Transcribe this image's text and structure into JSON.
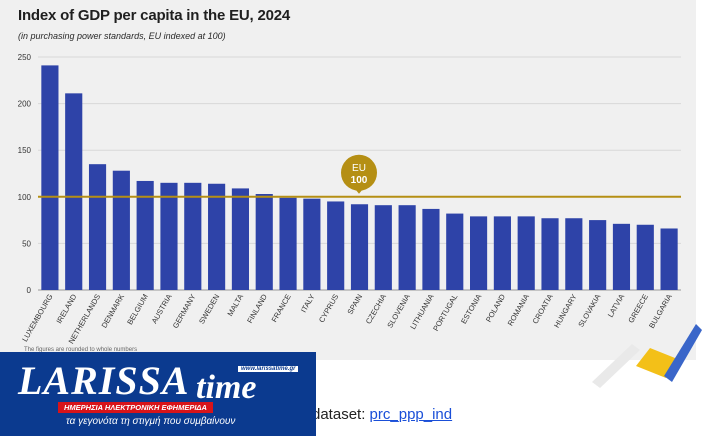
{
  "colors": {
    "bar": "#2e43a8",
    "reference": "#b58f14",
    "grid": "#d8d8d8",
    "panel_bg": "#f0f0f0"
  },
  "chart_data": {
    "type": "bar",
    "title": "Index of GDP per capita in the EU, 2024",
    "subtitle": "(in purchasing power standards, EU indexed at 100)",
    "xlabel": "",
    "ylabel": "",
    "ylim": [
      0,
      250
    ],
    "yticks": [
      0,
      50,
      100,
      150,
      200,
      250
    ],
    "grid": true,
    "categories": [
      "LUXEMBOURG",
      "IRELAND",
      "NETHERLANDS",
      "DENMARK",
      "BELGIUM",
      "AUSTRIA",
      "GERMANY",
      "SWEDEN",
      "MALTA",
      "FINLAND",
      "FRANCE",
      "ITALY",
      "CYPRUS",
      "SPAIN",
      "CZECHIA",
      "SLOVENIA",
      "LITHUANIA",
      "PORTUGAL",
      "ESTONIA",
      "POLAND",
      "ROMANIA",
      "CROATIA",
      "HUNGARY",
      "SLOVAKIA",
      "LATVIA",
      "GREECE",
      "BULGARIA"
    ],
    "values": [
      241,
      211,
      135,
      128,
      117,
      115,
      115,
      114,
      109,
      103,
      99,
      98,
      95,
      92,
      91,
      91,
      87,
      82,
      79,
      79,
      79,
      77,
      77,
      75,
      71,
      70,
      66
    ],
    "reference_line": {
      "value": 100,
      "label_top": "EU",
      "label_bottom": "100"
    }
  },
  "footnote": "The figures are rounded to whole numbers",
  "dataset": {
    "prefix": "dataset: ",
    "link_text": "prc_ppp_ind"
  },
  "logo": {
    "main": "LARISSA",
    "time": "time",
    "url": "www.larissatime.gr",
    "tagline": "ΗΜΕΡΗΣΙΑ ΗΛΕΚΤΡΟΝΙΚΗ ΕΦΗΜΕΡΙΔΑ",
    "subtitle": "τα γεγονότα τη στιγμή που συμβαίνουν"
  }
}
